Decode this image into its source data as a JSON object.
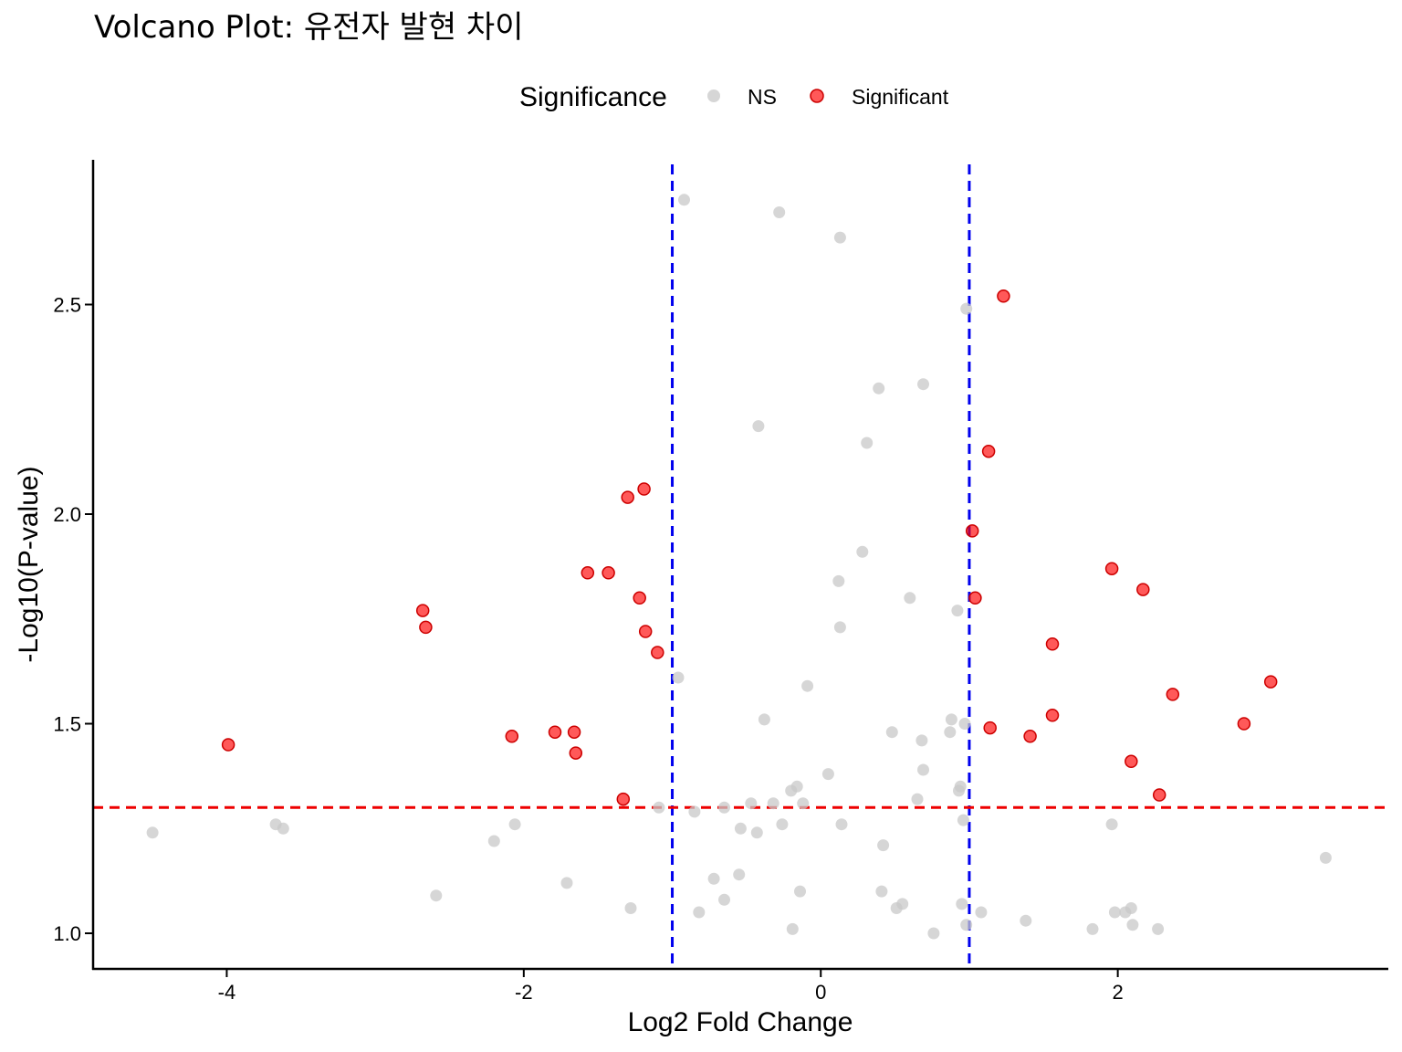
{
  "chart_data": {
    "type": "scatter",
    "title": "Volcano Plot: 유전자 발현 차이",
    "xlabel": "Log2 Fold Change",
    "ylabel": "-Log10(P-value)",
    "xlim": [
      -4.9,
      3.8
    ],
    "ylim": [
      0.92,
      2.85
    ],
    "x_ticks": [
      -4,
      -2,
      0,
      2
    ],
    "x_tick_labels": [
      "-4",
      "-2",
      "0",
      "2"
    ],
    "y_ticks": [
      1.0,
      1.5,
      2.0,
      2.5
    ],
    "y_tick_labels": [
      "1.0",
      "1.5",
      "2.0",
      "2.5"
    ],
    "grid": false,
    "legend": {
      "title": "Significance",
      "position": "top",
      "entries": [
        {
          "label": "NS",
          "color": "#c8c8c8"
        },
        {
          "label": "Significant",
          "color": "#ff0000"
        }
      ]
    },
    "reference_lines": [
      {
        "orientation": "vertical",
        "value": -1,
        "color": "#0000ee",
        "style": "dashed"
      },
      {
        "orientation": "vertical",
        "value": 1,
        "color": "#0000ee",
        "style": "dashed"
      },
      {
        "orientation": "horizontal",
        "value": 1.3,
        "color": "#ee0000",
        "style": "dashed"
      }
    ],
    "series": [
      {
        "name": "NS",
        "color": "#c8c8c8",
        "points": [
          [
            -0.92,
            2.75
          ],
          [
            -0.28,
            2.72
          ],
          [
            0.13,
            2.66
          ],
          [
            0.98,
            2.49
          ],
          [
            0.69,
            2.31
          ],
          [
            0.39,
            2.3
          ],
          [
            -0.42,
            2.21
          ],
          [
            0.31,
            2.17
          ],
          [
            0.28,
            1.91
          ],
          [
            0.12,
            1.84
          ],
          [
            0.6,
            1.8
          ],
          [
            0.92,
            1.77
          ],
          [
            0.13,
            1.73
          ],
          [
            -0.96,
            1.61
          ],
          [
            -0.09,
            1.59
          ],
          [
            -0.38,
            1.51
          ],
          [
            0.88,
            1.51
          ],
          [
            0.97,
            1.5
          ],
          [
            0.48,
            1.48
          ],
          [
            0.87,
            1.48
          ],
          [
            0.68,
            1.46
          ],
          [
            0.69,
            1.39
          ],
          [
            0.05,
            1.38
          ],
          [
            -0.16,
            1.35
          ],
          [
            -0.2,
            1.34
          ],
          [
            0.94,
            1.35
          ],
          [
            0.93,
            1.34
          ],
          [
            -0.12,
            1.31
          ],
          [
            0.65,
            1.32
          ],
          [
            -0.32,
            1.31
          ],
          [
            -0.47,
            1.31
          ],
          [
            -0.65,
            1.3
          ],
          [
            -1.09,
            1.3
          ],
          [
            -0.85,
            1.29
          ],
          [
            0.96,
            1.27
          ],
          [
            -0.26,
            1.26
          ],
          [
            0.14,
            1.26
          ],
          [
            -0.54,
            1.25
          ],
          [
            -0.43,
            1.24
          ],
          [
            1.96,
            1.26
          ],
          [
            -3.67,
            1.26
          ],
          [
            -3.62,
            1.25
          ],
          [
            -2.06,
            1.26
          ],
          [
            -4.5,
            1.24
          ],
          [
            -2.2,
            1.22
          ],
          [
            0.42,
            1.21
          ],
          [
            3.4,
            1.18
          ],
          [
            -0.55,
            1.14
          ],
          [
            -0.72,
            1.13
          ],
          [
            -1.71,
            1.12
          ],
          [
            -0.14,
            1.1
          ],
          [
            0.41,
            1.1
          ],
          [
            -2.59,
            1.09
          ],
          [
            -0.65,
            1.08
          ],
          [
            0.95,
            1.07
          ],
          [
            0.55,
            1.07
          ],
          [
            0.51,
            1.06
          ],
          [
            2.09,
            1.06
          ],
          [
            -1.28,
            1.06
          ],
          [
            2.05,
            1.05
          ],
          [
            -0.82,
            1.05
          ],
          [
            1.98,
            1.05
          ],
          [
            1.08,
            1.05
          ],
          [
            1.38,
            1.03
          ],
          [
            2.1,
            1.02
          ],
          [
            0.98,
            1.02
          ],
          [
            1.83,
            1.01
          ],
          [
            2.27,
            1.01
          ],
          [
            -0.19,
            1.01
          ],
          [
            0.76,
            1.0
          ]
        ]
      },
      {
        "name": "Significant",
        "color": "#ff0000",
        "points": [
          [
            1.23,
            2.52
          ],
          [
            1.13,
            2.15
          ],
          [
            -1.19,
            2.06
          ],
          [
            -1.3,
            2.04
          ],
          [
            1.02,
            1.96
          ],
          [
            1.96,
            1.87
          ],
          [
            -1.57,
            1.86
          ],
          [
            -1.43,
            1.86
          ],
          [
            2.17,
            1.82
          ],
          [
            -1.22,
            1.8
          ],
          [
            1.04,
            1.8
          ],
          [
            -2.68,
            1.77
          ],
          [
            -2.66,
            1.73
          ],
          [
            -1.18,
            1.72
          ],
          [
            1.56,
            1.69
          ],
          [
            -1.1,
            1.67
          ],
          [
            3.03,
            1.6
          ],
          [
            2.37,
            1.57
          ],
          [
            1.56,
            1.52
          ],
          [
            2.85,
            1.5
          ],
          [
            1.14,
            1.49
          ],
          [
            -1.79,
            1.48
          ],
          [
            -1.66,
            1.48
          ],
          [
            -2.08,
            1.47
          ],
          [
            1.41,
            1.47
          ],
          [
            -3.99,
            1.45
          ],
          [
            -1.65,
            1.43
          ],
          [
            2.09,
            1.41
          ],
          [
            -1.33,
            1.32
          ],
          [
            2.28,
            1.33
          ]
        ]
      }
    ]
  }
}
